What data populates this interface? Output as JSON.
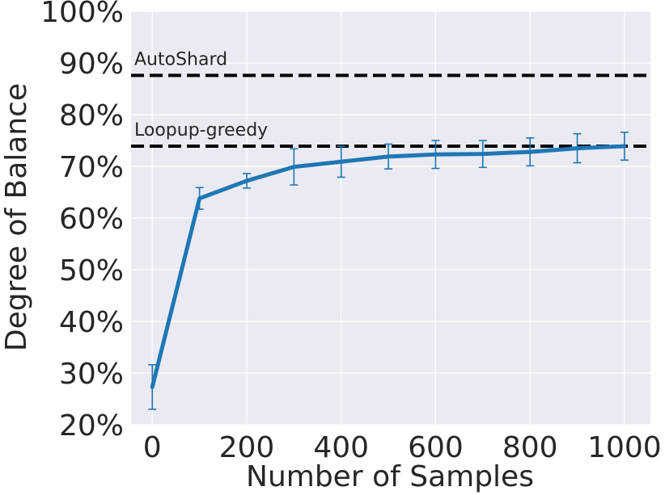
{
  "chart_data": {
    "type": "line",
    "xlabel": "Number of Samples",
    "ylabel": "Degree of Balance",
    "xlim": [
      -45,
      1055
    ],
    "ylim": [
      20,
      100
    ],
    "xticks": [
      0,
      200,
      400,
      600,
      800,
      1000
    ],
    "xtick_labels": [
      "0",
      "200",
      "400",
      "600",
      "800",
      "1000"
    ],
    "yticks": [
      20,
      30,
      40,
      50,
      60,
      70,
      80,
      90,
      100
    ],
    "ytick_labels": [
      "20%",
      "30%",
      "40%",
      "50%",
      "60%",
      "70%",
      "80%",
      "90%",
      "100%"
    ],
    "grid": true,
    "series": [
      {
        "x": [
          0,
          100,
          200,
          300,
          400,
          500,
          600,
          700,
          800,
          900,
          1000
        ],
        "y": [
          27.3,
          63.8,
          67.2,
          69.9,
          70.9,
          71.9,
          72.3,
          72.4,
          72.8,
          73.5,
          73.9
        ],
        "err": [
          4.3,
          2.1,
          1.4,
          3.5,
          3.0,
          2.4,
          2.7,
          2.6,
          2.7,
          2.8,
          2.7
        ],
        "color": "#1f77b4"
      }
    ],
    "reference_lines": [
      {
        "label": "AutoShard",
        "y": 87.6,
        "color": "#000000",
        "style": "dashed"
      },
      {
        "label": "Loopup-greedy",
        "y": 73.9,
        "color": "#000000",
        "style": "dashed"
      }
    ],
    "background_color": "#eaeaf2"
  }
}
